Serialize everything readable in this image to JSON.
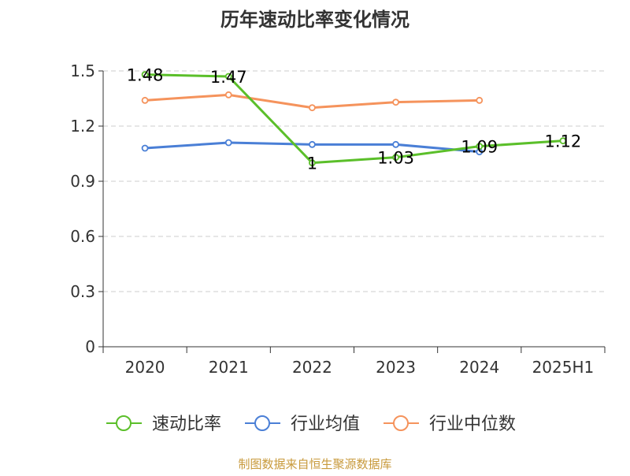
{
  "chart_data": {
    "type": "line",
    "title": "历年速动比率变化情况",
    "categories": [
      "2020",
      "2021",
      "2022",
      "2023",
      "2024",
      "2025H1"
    ],
    "y_ticks": [
      "0",
      "0.3",
      "0.6",
      "0.9",
      "1.2",
      "1.5"
    ],
    "ylim": [
      0,
      1.5
    ],
    "grid": true,
    "legend_position": "bottom",
    "series": [
      {
        "name": "速动比率",
        "color": "#5bbf2a",
        "values": [
          1.48,
          1.47,
          1.0,
          1.03,
          1.09,
          1.12
        ],
        "data_labels": [
          "1.48",
          "1.47",
          "1",
          "1.03",
          "1.09",
          "1.12"
        ]
      },
      {
        "name": "行业均值",
        "color": "#4a7fd6",
        "values": [
          1.08,
          1.11,
          1.1,
          1.1,
          1.06,
          null
        ]
      },
      {
        "name": "行业中位数",
        "color": "#f5935c",
        "values": [
          1.34,
          1.37,
          1.3,
          1.33,
          1.34,
          null
        ]
      }
    ],
    "source_note": "制图数据来自恒生聚源数据库",
    "colors": {
      "axis": "#333333",
      "grid": "#cccccc",
      "source_note": "#c89a3c",
      "title": "#333333"
    }
  }
}
